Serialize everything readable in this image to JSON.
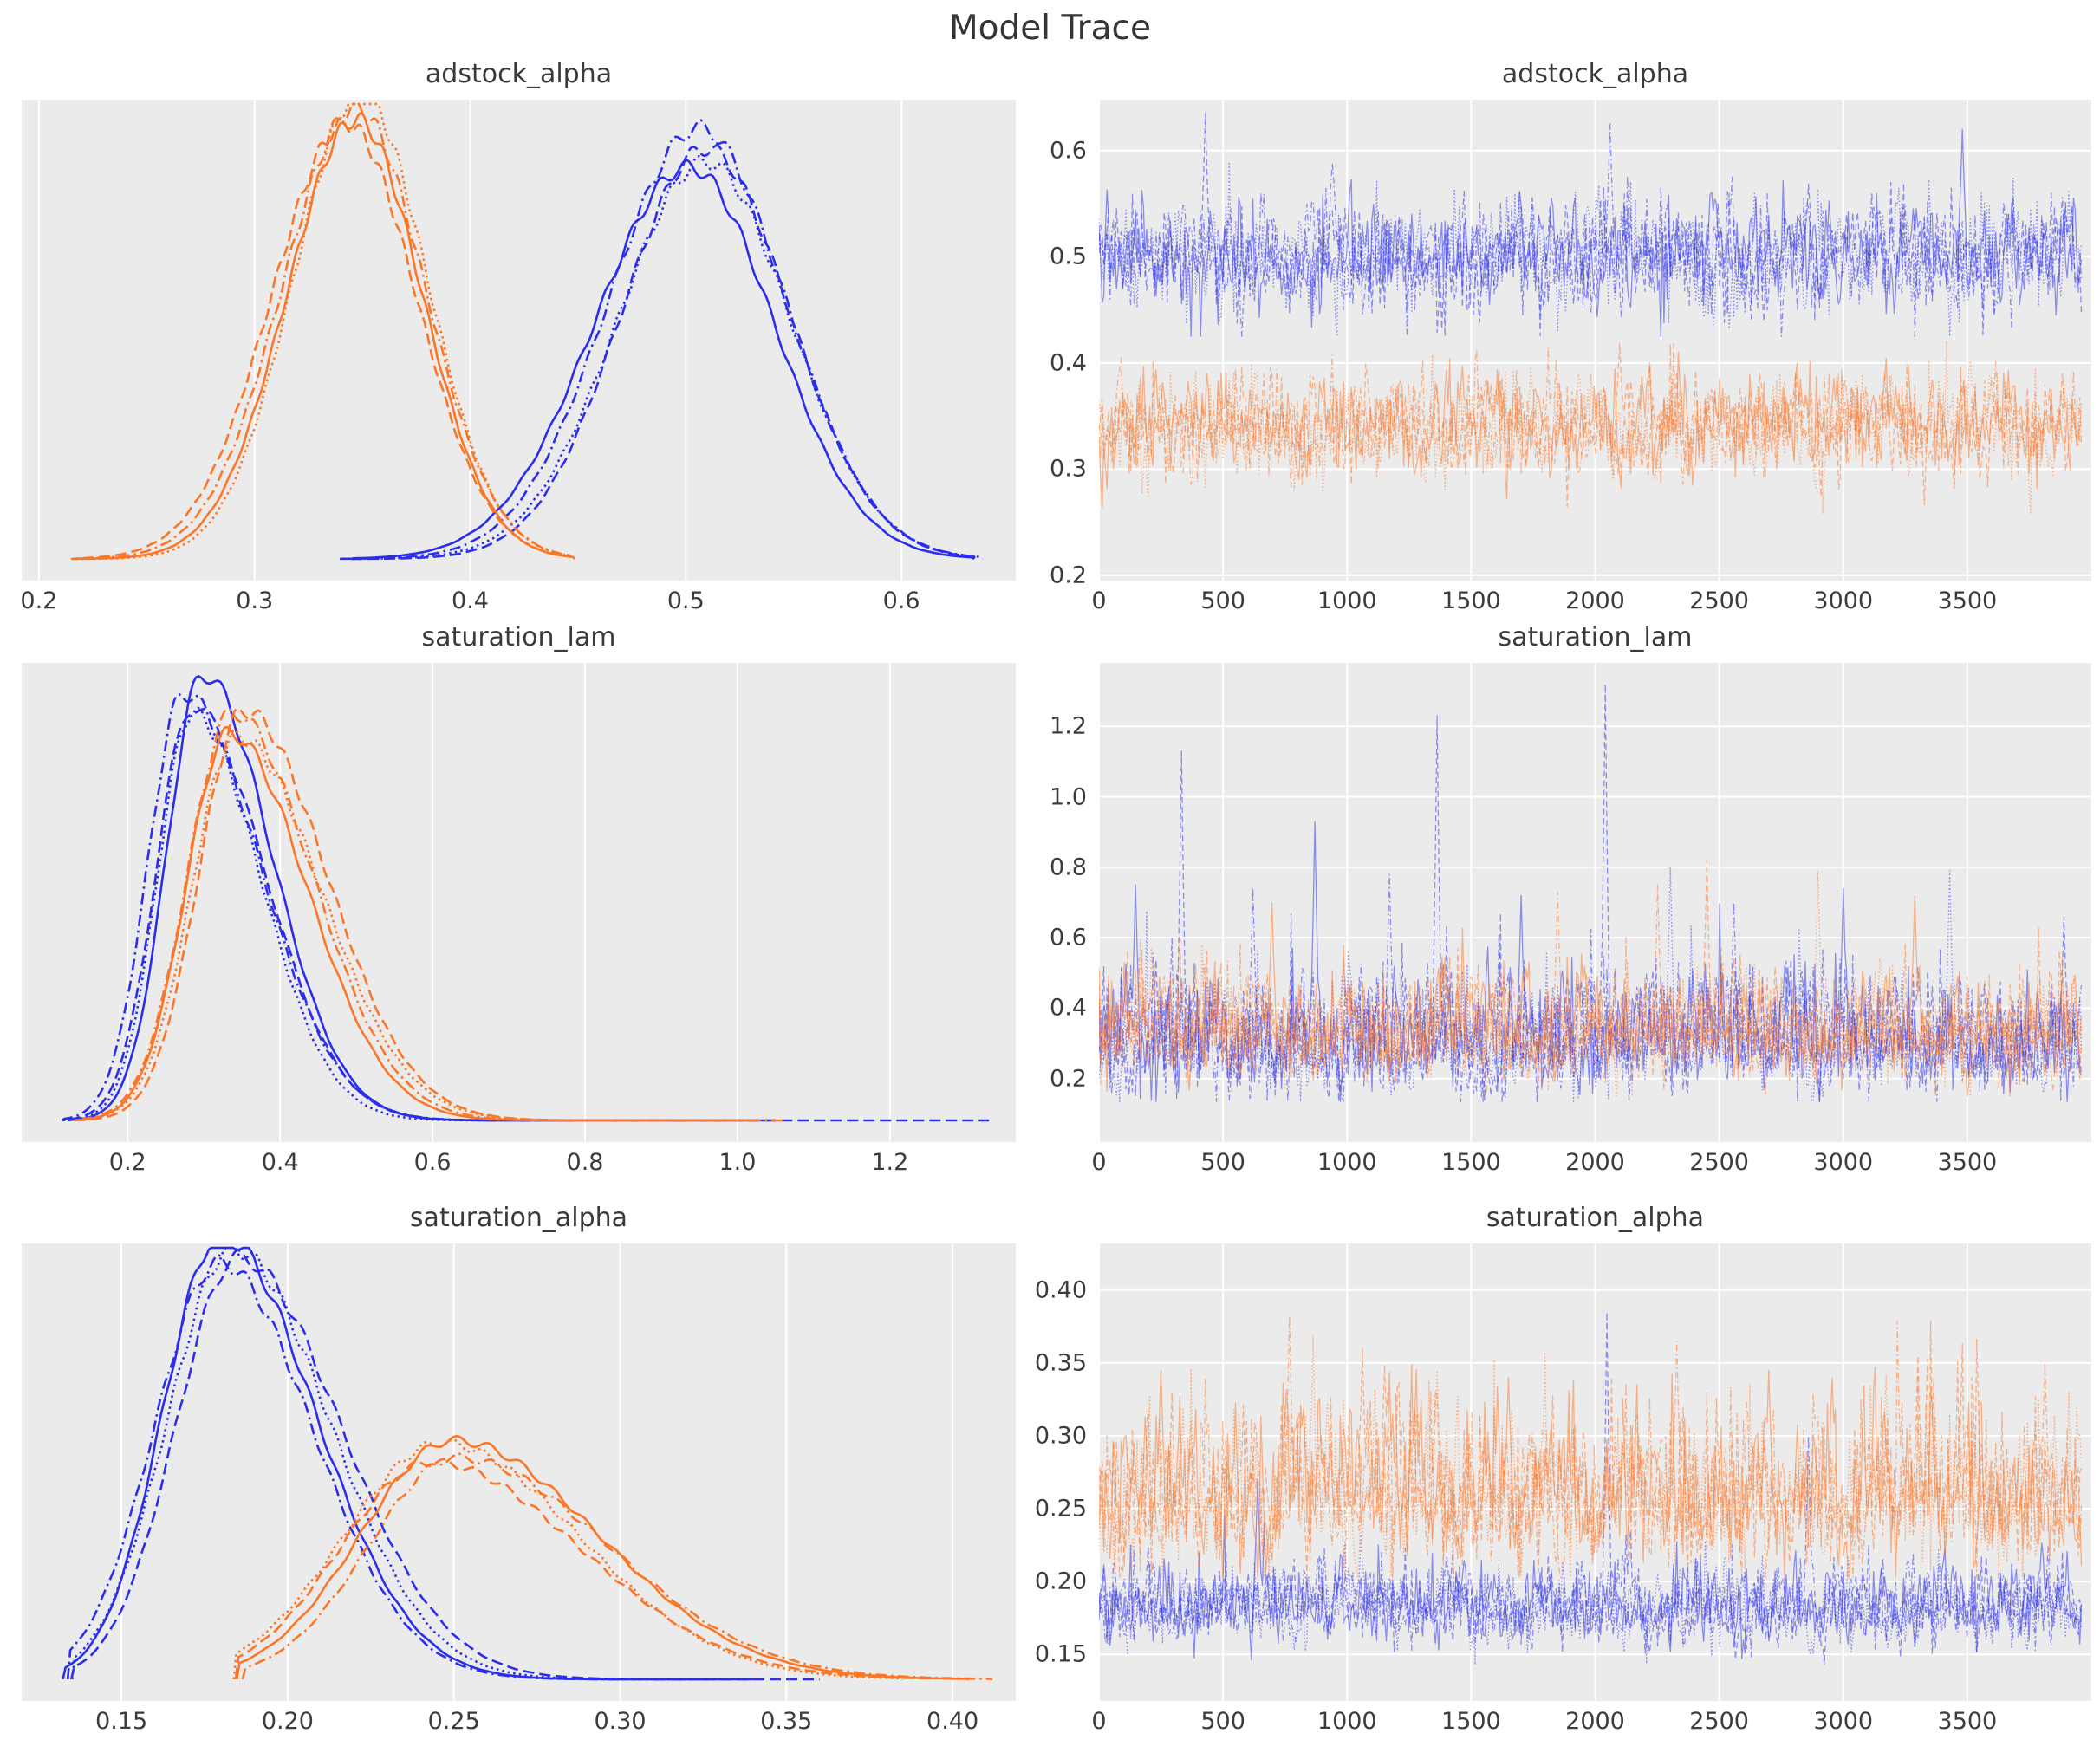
{
  "figure": {
    "title": "Model Trace",
    "background": "#ffffff",
    "panel_background": "#ebebeb",
    "grid_color": "#ffffff",
    "text_color": "#3c3c3c",
    "colors": {
      "blue": "#2a2eec",
      "orange": "#fc7628"
    },
    "chain_linestyles": [
      "solid",
      "dashed",
      "dashdot",
      "dotted"
    ]
  },
  "rows": [
    {
      "param": "adstock_alpha"
    },
    {
      "param": "saturation_lam"
    },
    {
      "param": "saturation_alpha"
    }
  ],
  "chart_data": [
    {
      "id": "kde-adstock_alpha",
      "type": "kde",
      "title": "adstock_alpha",
      "row": 0,
      "col": "left",
      "xlim": [
        0.192,
        0.653
      ],
      "xticks": {
        "values": [
          0.2,
          0.3,
          0.4,
          0.5,
          0.6
        ],
        "labels": [
          "0.2",
          "0.3",
          "0.4",
          "0.5",
          "0.6"
        ]
      },
      "grid": "vertical",
      "series": [
        {
          "name": "dim0",
          "color_key": "blue",
          "mode": 0.505,
          "sigma_left": 0.041,
          "sigma_right": 0.04,
          "support": [
            0.343,
            0.638
          ],
          "height": 0.915,
          "chains": 4
        },
        {
          "name": "dim1",
          "color_key": "orange",
          "mode": 0.345,
          "sigma_left": 0.033,
          "sigma_right": 0.031,
          "support": [
            0.218,
            0.447
          ],
          "height": 1.0,
          "chains": 4
        }
      ]
    },
    {
      "id": "trace-adstock_alpha",
      "type": "trace",
      "title": "adstock_alpha",
      "row": 0,
      "col": "right",
      "xlim": [
        0,
        4000
      ],
      "xticks": {
        "values": [
          0,
          500,
          1000,
          1500,
          2000,
          2500,
          3000,
          3500
        ],
        "labels": [
          "0",
          "500",
          "1000",
          "1500",
          "2000",
          "2500",
          "3000",
          "3500"
        ]
      },
      "ylim": [
        0.195,
        0.648
      ],
      "yticks": {
        "values": [
          0.2,
          0.3,
          0.4,
          0.5,
          0.6
        ],
        "labels": [
          "0.2",
          "0.3",
          "0.4",
          "0.5",
          "0.6"
        ]
      },
      "grid": "both",
      "n_draws": 3960,
      "chains": 4,
      "series": [
        {
          "name": "dim0",
          "color_key": "blue",
          "mean": 0.502,
          "sd": 0.03,
          "skew_up": 1.02,
          "clip": [
            0.425,
            0.638
          ],
          "tail_p": 0,
          "tail_amp": 0,
          "spikes": [
            [
              430,
              0.635,
              1
            ],
            [
              2060,
              0.625,
              2
            ],
            [
              3480,
              0.62,
              0
            ]
          ]
        },
        {
          "name": "dim1",
          "color_key": "orange",
          "mean": 0.341,
          "sd": 0.028,
          "skew_up": 1.0,
          "clip": [
            0.258,
            0.422
          ],
          "tail_p": 0,
          "tail_amp": 0,
          "spikes": [
            [
              1500,
              0.262,
              3
            ],
            [
              2100,
              0.418,
              1
            ]
          ]
        }
      ]
    },
    {
      "id": "kde-saturation_lam",
      "type": "kde",
      "title": "saturation_lam",
      "row": 1,
      "col": "left",
      "xlim": [
        0.061,
        1.365
      ],
      "xticks": {
        "values": [
          0.2,
          0.4,
          0.6,
          0.8,
          1.0,
          1.2
        ],
        "labels": [
          "0.2",
          "0.4",
          "0.6",
          "0.8",
          "1.0",
          "1.2"
        ]
      },
      "grid": "vertical",
      "series": [
        {
          "name": "dim0",
          "color_key": "blue",
          "mode": 0.285,
          "sigma_left": 0.048,
          "sigma_right": 0.095,
          "support": [
            0.123,
            1.05
          ],
          "chain_support_right": [
            1.05,
            1.33,
            0.93,
            0.87
          ],
          "height": 0.955,
          "chains": 4
        },
        {
          "name": "dim1",
          "color_key": "orange",
          "mode": 0.345,
          "sigma_left": 0.058,
          "sigma_right": 0.105,
          "support": [
            0.132,
            1.06
          ],
          "chain_support_right": [
            1.02,
            0.9,
            1.06,
            0.84
          ],
          "height": 0.895,
          "chains": 4
        }
      ]
    },
    {
      "id": "trace-saturation_lam",
      "type": "trace",
      "title": "saturation_lam",
      "row": 1,
      "col": "right",
      "xlim": [
        0,
        4000
      ],
      "xticks": {
        "values": [
          0,
          500,
          1000,
          1500,
          2000,
          2500,
          3000,
          3500
        ],
        "labels": [
          "0",
          "500",
          "1000",
          "1500",
          "2000",
          "2500",
          "3000",
          "3500"
        ]
      },
      "ylim": [
        0.02,
        1.38
      ],
      "yticks": {
        "values": [
          0.2,
          0.4,
          0.6,
          0.8,
          1.0,
          1.2
        ],
        "labels": [
          "0.2",
          "0.4",
          "0.6",
          "0.8",
          "1.0",
          "1.2"
        ]
      },
      "grid": "both",
      "n_draws": 3960,
      "chains": 4,
      "series": [
        {
          "name": "dim0",
          "color_key": "blue",
          "mean": 0.3,
          "sd": 0.082,
          "skew_up": 1.45,
          "clip": [
            0.135,
            1.335
          ],
          "tail_p": 0.004,
          "tail_amp": 0.45,
          "spikes": [
            [
              330,
              1.13,
              1
            ],
            [
              870,
              0.93,
              0
            ],
            [
              1170,
              0.78,
              2
            ],
            [
              1360,
              1.23,
              1
            ],
            [
              2040,
              1.32,
              1
            ],
            [
              2300,
              0.8,
              3
            ],
            [
              3430,
              0.79,
              3
            ],
            [
              150,
              0.75,
              0
            ],
            [
              620,
              0.74,
              2
            ],
            [
              1700,
              0.72,
              0
            ],
            [
              2560,
              0.7,
              2
            ],
            [
              3000,
              0.74,
              0
            ],
            [
              3890,
              0.66,
              1
            ]
          ]
        },
        {
          "name": "dim1",
          "color_key": "orange",
          "mean": 0.33,
          "sd": 0.072,
          "skew_up": 1.38,
          "clip": [
            0.15,
            0.86
          ],
          "tail_p": 0.004,
          "tail_amp": 0.3,
          "spikes": [
            [
              700,
              0.7,
              0
            ],
            [
              1850,
              0.73,
              2
            ],
            [
              2250,
              0.75,
              2
            ],
            [
              2450,
              0.82,
              1
            ],
            [
              2900,
              0.79,
              3
            ],
            [
              3290,
              0.72,
              0
            ]
          ]
        }
      ]
    },
    {
      "id": "kde-saturation_alpha",
      "type": "kde",
      "title": "saturation_alpha",
      "row": 2,
      "col": "left",
      "xlim": [
        0.12,
        0.419
      ],
      "xticks": {
        "values": [
          0.15,
          0.2,
          0.25,
          0.3,
          0.35,
          0.4
        ],
        "labels": [
          "0.15",
          "0.20",
          "0.25",
          "0.30",
          "0.35",
          "0.40"
        ]
      },
      "grid": "vertical",
      "series": [
        {
          "name": "dim0",
          "color_key": "blue",
          "mode": 0.1825,
          "sigma_left": 0.0185,
          "sigma_right": 0.029,
          "support": [
            0.134,
            0.35
          ],
          "chain_support_right": [
            0.34,
            0.36,
            0.33,
            0.32
          ],
          "height": 1.0,
          "chains": 4
        },
        {
          "name": "dim1",
          "color_key": "orange",
          "mode": 0.248,
          "sigma_left": 0.028,
          "sigma_right": 0.043,
          "support": [
            0.186,
            0.408
          ],
          "chain_support_right": [
            0.405,
            0.395,
            0.412,
            0.385
          ],
          "height": 0.535,
          "chains": 4
        }
      ]
    },
    {
      "id": "trace-saturation_alpha",
      "type": "trace",
      "title": "saturation_alpha",
      "row": 2,
      "col": "right",
      "xlim": [
        0,
        4000
      ],
      "xticks": {
        "values": [
          0,
          500,
          1000,
          1500,
          2000,
          2500,
          3000,
          3500
        ],
        "labels": [
          "0",
          "500",
          "1000",
          "1500",
          "2000",
          "2500",
          "3000",
          "3500"
        ]
      },
      "ylim": [
        0.118,
        0.432
      ],
      "yticks": {
        "values": [
          0.15,
          0.2,
          0.25,
          0.3,
          0.35,
          0.4
        ],
        "labels": [
          "0.15",
          "0.20",
          "0.25",
          "0.30",
          "0.35",
          "0.40"
        ]
      },
      "grid": "both",
      "n_draws": 3960,
      "chains": 4,
      "series": [
        {
          "name": "dim0",
          "color_key": "blue",
          "mean": 0.182,
          "sd": 0.0145,
          "skew_up": 1.28,
          "clip": [
            0.143,
            0.39
          ],
          "tail_p": 0.003,
          "tail_amp": 0.045,
          "spikes": [
            [
              2050,
              0.385,
              1
            ],
            [
              2860,
              0.3,
              2
            ],
            [
              640,
              0.27,
              0
            ]
          ]
        },
        {
          "name": "dim1",
          "color_key": "orange",
          "mean": 0.256,
          "sd": 0.026,
          "skew_up": 1.5,
          "clip": [
            0.203,
            0.408
          ],
          "tail_p": 0.006,
          "tail_amp": 0.08,
          "spikes": [
            [
              250,
              0.345,
              0
            ],
            [
              770,
              0.382,
              2
            ],
            [
              1060,
              0.36,
              1
            ],
            [
              1360,
              0.345,
              3
            ],
            [
              1650,
              0.34,
              0
            ],
            [
              2330,
              0.365,
              2
            ],
            [
              2700,
              0.345,
              0
            ],
            [
              3300,
              0.355,
              1
            ],
            [
              3810,
              0.35,
              2
            ]
          ]
        }
      ]
    }
  ]
}
